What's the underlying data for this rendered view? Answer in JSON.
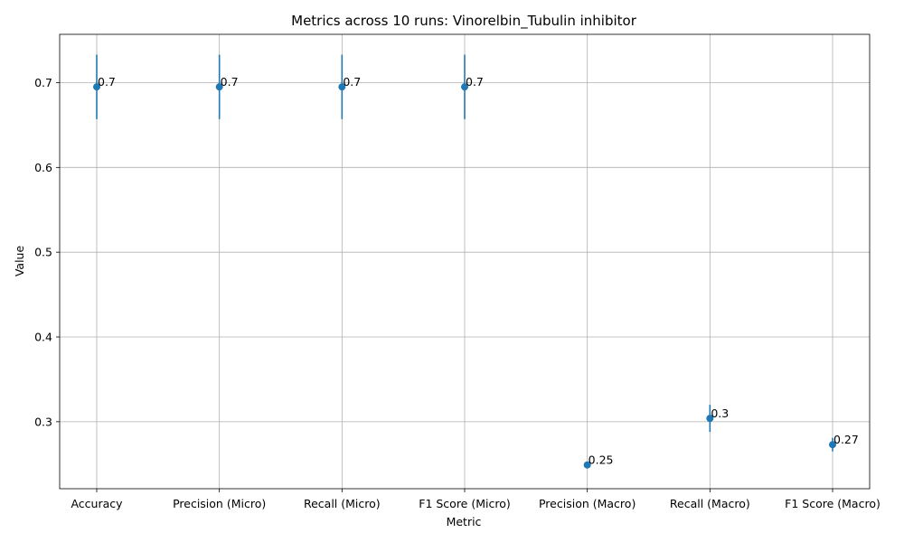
{
  "chart_data": {
    "type": "scatter",
    "title": "Metrics across 10 runs: Vinorelbin_Tubulin inhibitor",
    "xlabel": "Metric",
    "ylabel": "Value",
    "categories": [
      "Accuracy",
      "Precision (Micro)",
      "Recall (Micro)",
      "F1 Score (Micro)",
      "Precision (Macro)",
      "Recall (Macro)",
      "F1 Score (Macro)"
    ],
    "values": [
      0.695,
      0.695,
      0.695,
      0.695,
      0.249,
      0.304,
      0.273
    ],
    "errors": [
      0.038,
      0.038,
      0.038,
      0.038,
      0.003,
      0.016,
      0.008
    ],
    "labels": [
      "0.7",
      "0.7",
      "0.7",
      "0.7",
      "0.25",
      "0.3",
      "0.27"
    ],
    "yticks": [
      0.3,
      0.4,
      0.5,
      0.6,
      0.7
    ],
    "ytick_labels": [
      "0.3",
      "0.4",
      "0.5",
      "0.6",
      "0.7"
    ],
    "ylim": [
      0.221,
      0.757
    ],
    "grid": true,
    "color": "#1f77b4"
  }
}
